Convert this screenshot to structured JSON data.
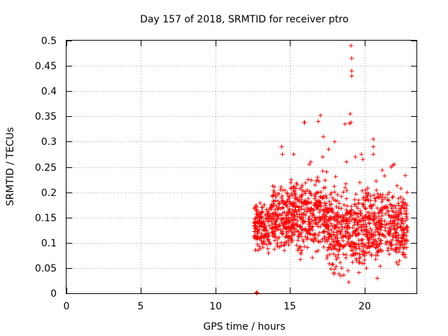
{
  "chart_data": {
    "type": "scatter",
    "title": "Day 157 of 2018, SRMTID for receiver ptro",
    "xlabel": "GPS time / hours",
    "ylabel": "SRMTID / TECUs",
    "xlim": [
      0,
      23.5
    ],
    "ylim": [
      0,
      0.5
    ],
    "xticks": [
      0,
      5,
      10,
      15,
      20
    ],
    "yticks": [
      0,
      0.05,
      0.1,
      0.15,
      0.2,
      0.25,
      0.3,
      0.35,
      0.4,
      0.45,
      0.5
    ],
    "xtick_labels": [
      "0",
      "5",
      "10",
      "15",
      "20"
    ],
    "ytick_labels": [
      "0",
      "0.05",
      "0.1",
      "0.15",
      "0.2",
      "0.25",
      "0.3",
      "0.35",
      "0.4",
      "0.45",
      "0.5"
    ],
    "grid": true,
    "marker": "+",
    "color": "#ff0000",
    "x_range_of_points": [
      12.6,
      22.9
    ],
    "series": [
      {
        "name": "SRMTID",
        "points": [
          [
            12.75,
            0.002
          ],
          [
            12.78,
            0.0
          ],
          [
            12.8,
            0.001
          ],
          [
            19.1,
            0.49
          ],
          [
            19.15,
            0.465
          ],
          [
            19.15,
            0.44
          ],
          [
            19.15,
            0.43
          ],
          [
            19.05,
            0.355
          ],
          [
            19.1,
            0.338
          ],
          [
            19.0,
            0.336
          ],
          [
            18.7,
            0.335
          ],
          [
            17.05,
            0.352
          ],
          [
            16.9,
            0.34
          ],
          [
            16.0,
            0.338
          ],
          [
            15.95,
            0.338
          ],
          [
            20.6,
            0.305
          ],
          [
            20.6,
            0.29
          ],
          [
            18.0,
            0.3
          ],
          [
            17.25,
            0.31
          ],
          [
            14.45,
            0.29
          ],
          [
            14.5,
            0.275
          ],
          [
            15.25,
            0.275
          ],
          [
            19.8,
            0.275
          ],
          [
            20.6,
            0.275
          ],
          [
            17.6,
            0.285
          ],
          [
            17.2,
            0.27
          ],
          [
            16.4,
            0.26
          ],
          [
            19.4,
            0.27
          ],
          [
            19.9,
            0.265
          ],
          [
            16.3,
            0.255
          ],
          [
            18.8,
            0.26
          ],
          [
            21.8,
            0.25
          ],
          [
            21.9,
            0.253
          ],
          [
            22.0,
            0.255
          ],
          [
            22.75,
            0.233
          ]
        ],
        "bulk_regions": [
          {
            "x_from": 12.6,
            "x_to": 13.6,
            "y_from": 0.06,
            "y_to": 0.2
          },
          {
            "x_from": 13.6,
            "x_to": 15.0,
            "y_from": 0.06,
            "y_to": 0.24
          },
          {
            "x_from": 15.0,
            "x_to": 17.5,
            "y_from": 0.05,
            "y_to": 0.26
          },
          {
            "x_from": 17.5,
            "x_to": 19.5,
            "y_from": 0.01,
            "y_to": 0.24
          },
          {
            "x_from": 19.5,
            "x_to": 21.5,
            "y_from": 0.02,
            "y_to": 0.25
          },
          {
            "x_from": 21.5,
            "x_to": 22.9,
            "y_from": 0.03,
            "y_to": 0.23
          }
        ]
      }
    ]
  }
}
